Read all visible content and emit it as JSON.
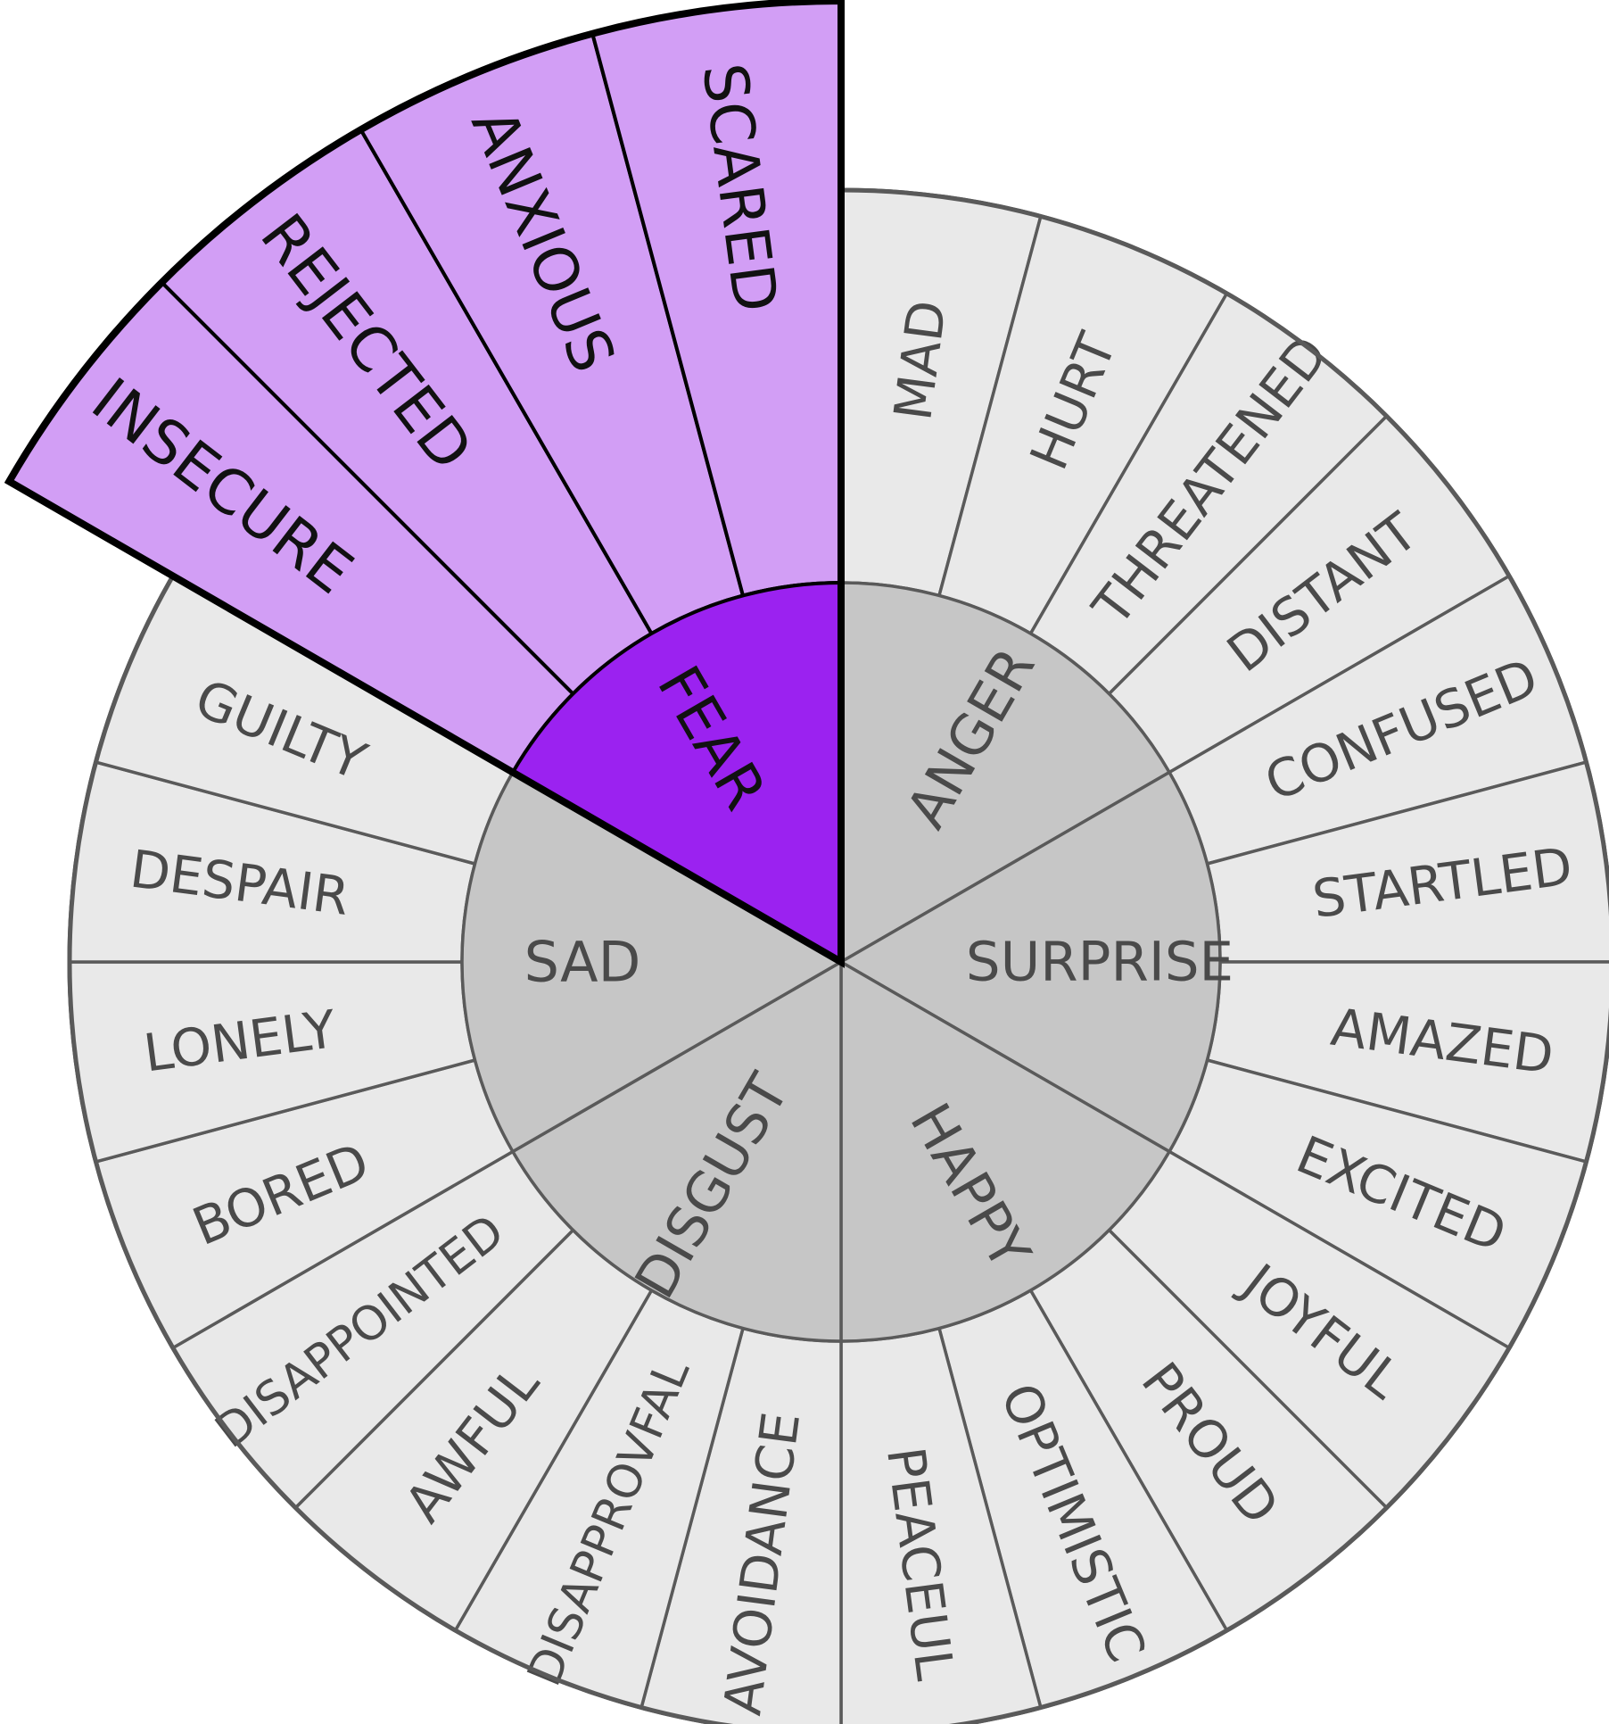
{
  "wheel": {
    "core_emotions": [
      {
        "name": "ANGER",
        "selected": false,
        "feelings": [
          "MAD",
          "HURT",
          "THREATENED",
          "DISTANT"
        ]
      },
      {
        "name": "SURPRISE",
        "selected": false,
        "feelings": [
          "CONFUSED",
          "STARTLED",
          "AMAZED",
          "EXCITED"
        ]
      },
      {
        "name": "HAPPY",
        "selected": false,
        "feelings": [
          "JOYFUL",
          "PROUD",
          "OPTIMISTIC",
          "PEACEUL"
        ]
      },
      {
        "name": "DISGUST",
        "selected": false,
        "feelings": [
          "AVOIDANCE",
          "DISAPPROVFAL",
          "AWFUL",
          "DISAPPOINTED"
        ]
      },
      {
        "name": "SAD",
        "selected": false,
        "feelings": [
          "BORED",
          "LONELY",
          "DESPAIR",
          "GUILTY"
        ]
      },
      {
        "name": "FEAR",
        "selected": true,
        "feelings": [
          "INSECURE",
          "REJECTED",
          "ANXIOUS",
          "SCARED"
        ]
      }
    ],
    "colors": {
      "inner_fill": "#c6c6c6",
      "outer_fill": "#e9e9e9",
      "text_color": "#4a4a4a",
      "divider_color": "#5a5a5a",
      "selected_inner_fill": "#9b22f0",
      "selected_outer_fill": "#d29ef5",
      "selected_text_color": "#111111",
      "selected_outline": "#000000"
    }
  }
}
